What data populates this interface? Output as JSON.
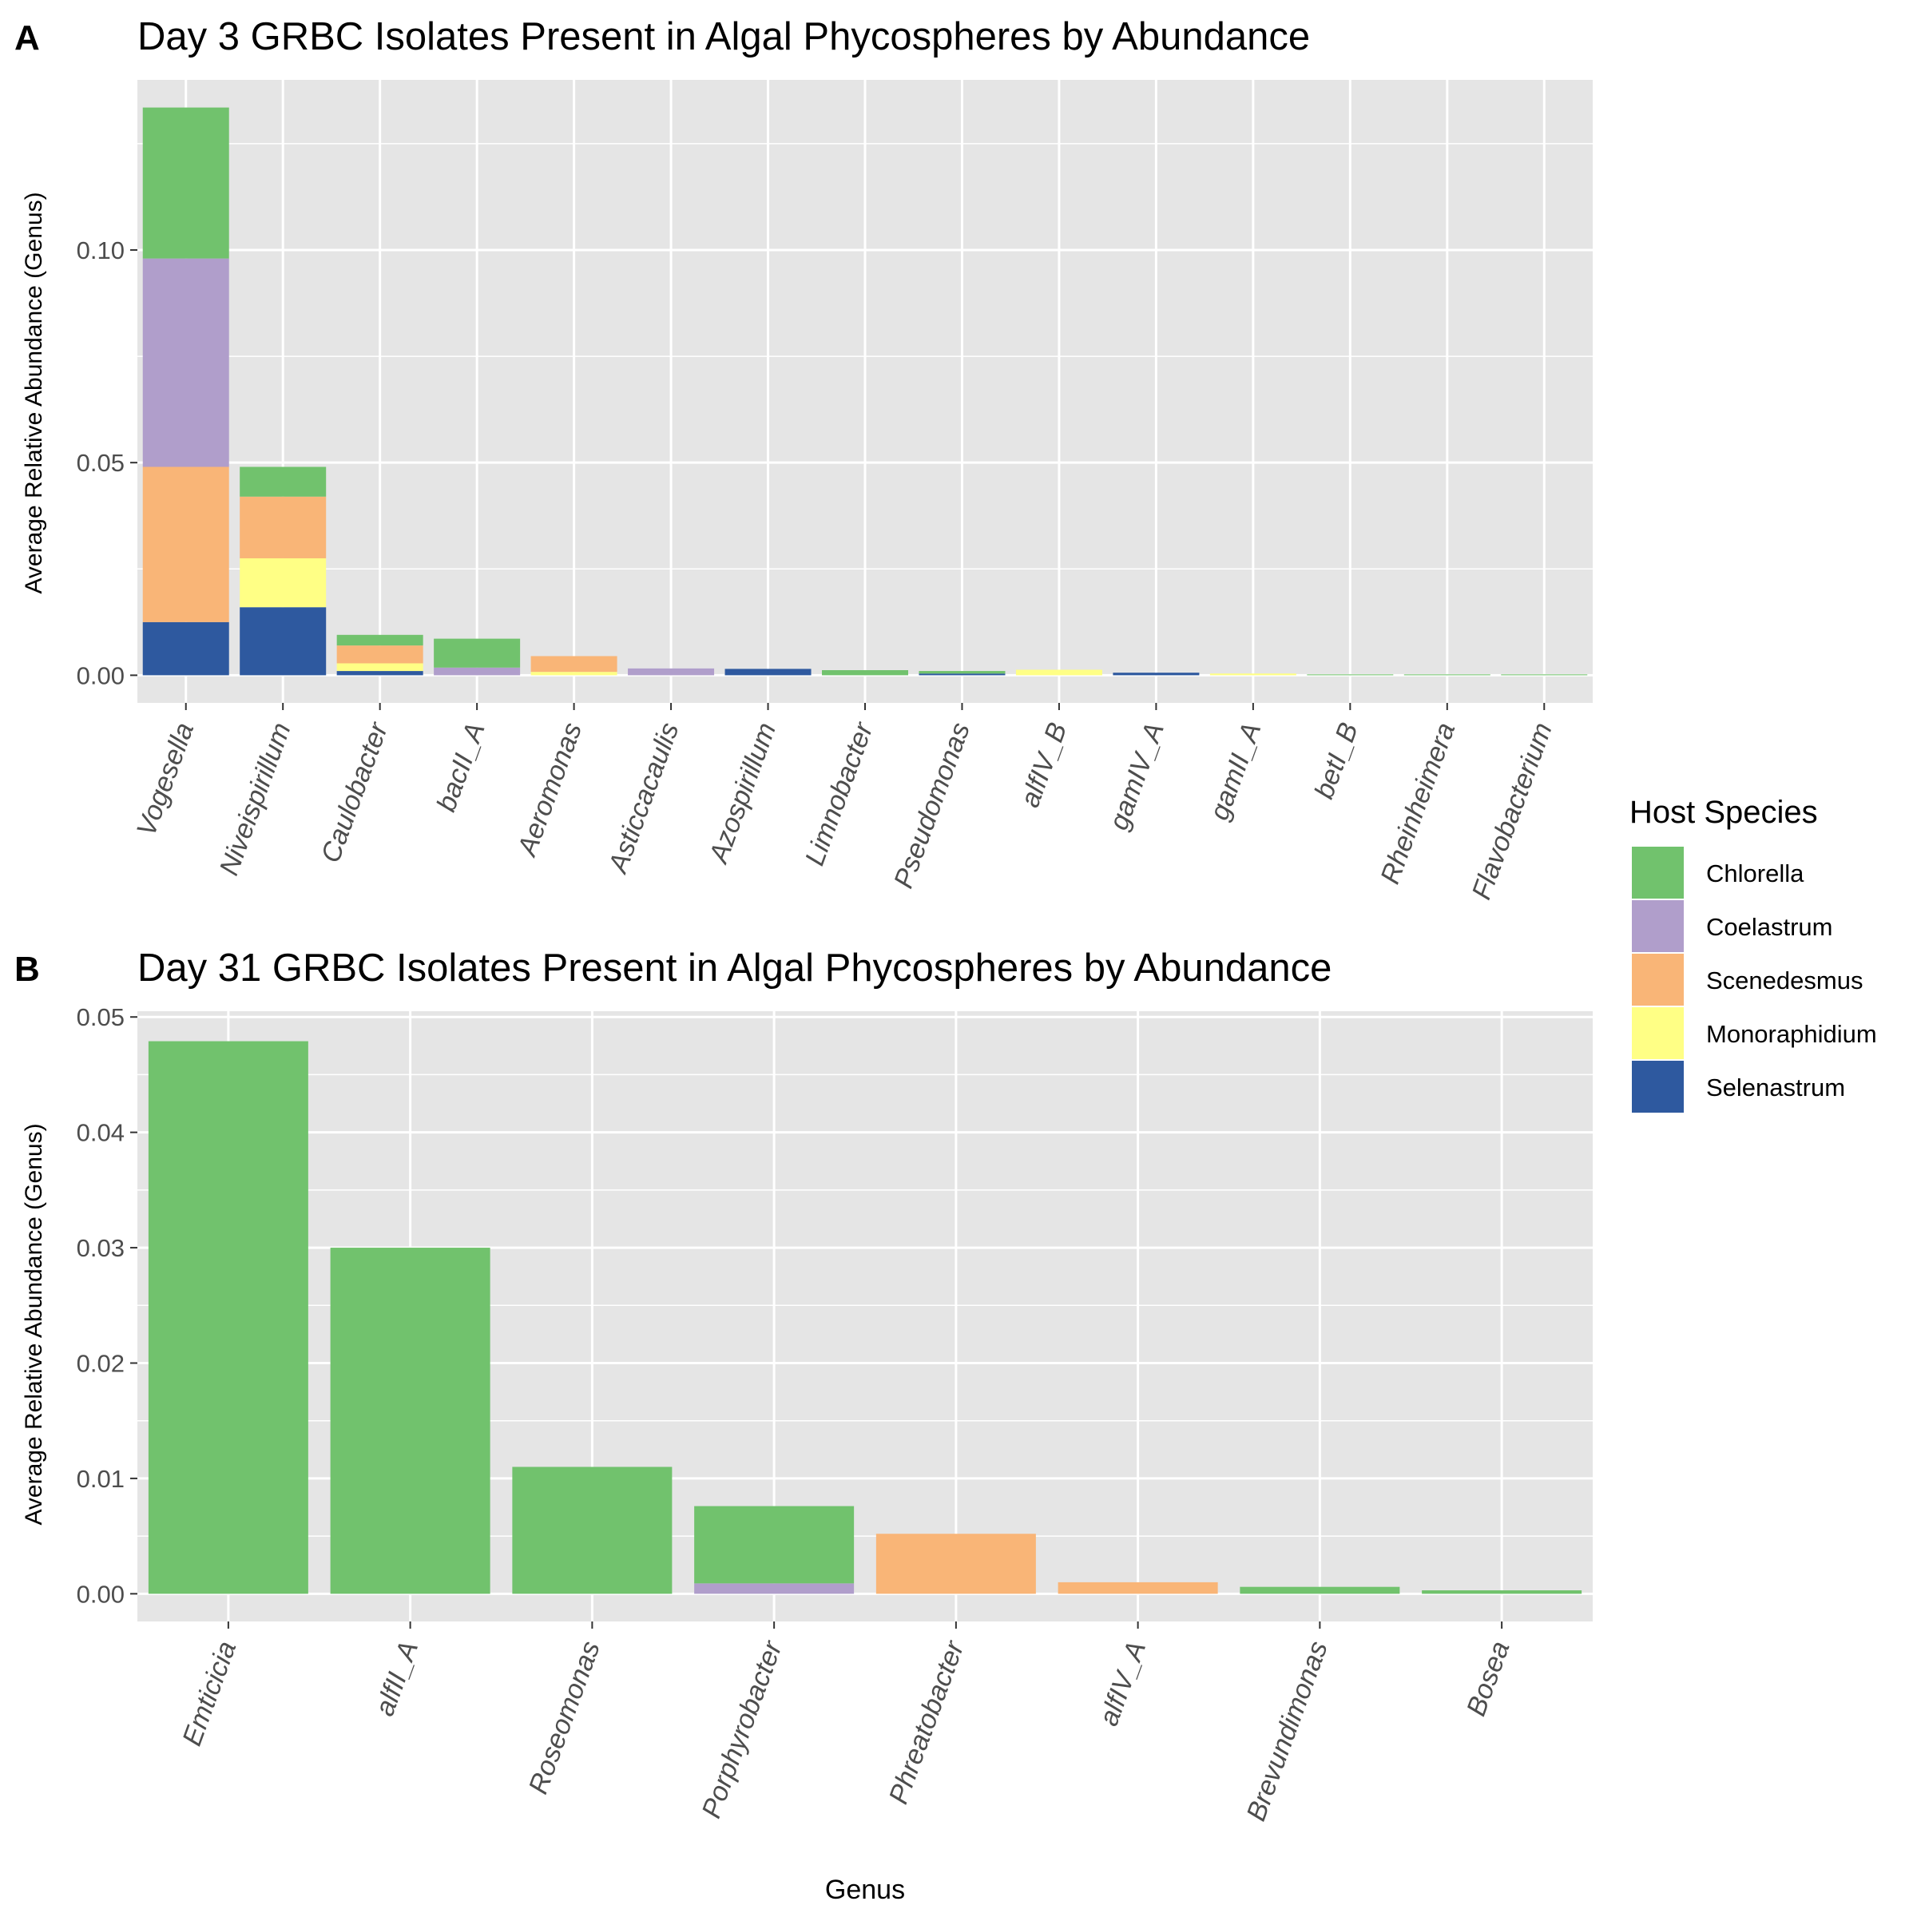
{
  "legend": {
    "title": "Host Species",
    "items": [
      {
        "name": "Chlorella",
        "color": "#71C26D"
      },
      {
        "name": "Coelastrum",
        "color": "#B09ECB"
      },
      {
        "name": "Scenedesmus",
        "color": "#F9B577"
      },
      {
        "name": "Monoraphidium",
        "color": "#FFFF85"
      },
      {
        "name": "Selenastrum",
        "color": "#2E599F"
      }
    ]
  },
  "chart_data": [
    {
      "panel_label": "A",
      "type": "bar",
      "stacked": true,
      "title": "Day 3 GRBC Isolates Present in Algal Phycospheres by Abundance",
      "xlabel": "",
      "ylabel": "Average Relative Abundance (Genus)",
      "ylim": [
        -0.0065,
        0.14
      ],
      "yticks": [
        0.0,
        0.05,
        0.1
      ],
      "ytick_labels": [
        "0.00",
        "0.05",
        "0.10"
      ],
      "grid": true,
      "categories": [
        "Vogesella",
        "Niveispirillum",
        "Caulobacter",
        "bacII_A",
        "Aeromonas",
        "Asticcacaulis",
        "Azospirillum",
        "Limnobacter",
        "Pseudomonas",
        "alfIV_B",
        "gamIV_A",
        "gamII_A",
        "betI_B",
        "Rheinheimera",
        "Flavobacterium"
      ],
      "series": [
        {
          "name": "Selenastrum",
          "values": [
            0.0125,
            0.016,
            0.001,
            0,
            0,
            0,
            0.0015,
            0,
            0.0004,
            0,
            0.0006,
            0,
            0,
            0,
            0
          ]
        },
        {
          "name": "Monoraphidium",
          "values": [
            0,
            0.0115,
            0.0018,
            0,
            0.0008,
            0,
            0,
            0,
            0,
            0.0013,
            0,
            0.0004,
            0,
            0,
            0
          ]
        },
        {
          "name": "Scenedesmus",
          "values": [
            0.0365,
            0.0145,
            0.0042,
            0,
            0.0037,
            0,
            0,
            0,
            0,
            0,
            0,
            0,
            0,
            0,
            0
          ]
        },
        {
          "name": "Coelastrum",
          "values": [
            0.049,
            0,
            0,
            0.0018,
            0,
            0.0016,
            0,
            0,
            0,
            0,
            0,
            0,
            0,
            0,
            0
          ]
        },
        {
          "name": "Chlorella",
          "values": [
            0.0355,
            0.007,
            0.0025,
            0.0068,
            0,
            0,
            0,
            0.0012,
            0.0006,
            0,
            0,
            0,
            0.0002,
            0.0002,
            0.0002
          ]
        }
      ]
    },
    {
      "panel_label": "B",
      "type": "bar",
      "stacked": true,
      "title": "Day 31 GRBC Isolates Present in Algal Phycospheres by Abundance",
      "xlabel": "Genus",
      "ylabel": "Average Relative Abundance (Genus)",
      "ylim": [
        -0.0024,
        0.0505
      ],
      "yticks": [
        0.0,
        0.01,
        0.02,
        0.03,
        0.04,
        0.05
      ],
      "ytick_labels": [
        "0.00",
        "0.01",
        "0.02",
        "0.03",
        "0.04",
        "0.05"
      ],
      "grid": true,
      "categories": [
        "Emticicia",
        "alfII_A",
        "Roseomonas",
        "Porphyrobacter",
        "Phreatobacter",
        "alfIV_A",
        "Brevundimonas",
        "Bosea"
      ],
      "series": [
        {
          "name": "Selenastrum",
          "values": [
            0,
            0,
            0,
            0,
            0,
            0,
            0,
            0
          ]
        },
        {
          "name": "Monoraphidium",
          "values": [
            0,
            0,
            0,
            0,
            0,
            0,
            0,
            0
          ]
        },
        {
          "name": "Scenedesmus",
          "values": [
            0,
            0,
            0,
            0,
            0.0052,
            0.001,
            0,
            0
          ]
        },
        {
          "name": "Coelastrum",
          "values": [
            0,
            0,
            0,
            0.0009,
            0,
            0,
            0,
            0
          ]
        },
        {
          "name": "Chlorella",
          "values": [
            0.0479,
            0.03,
            0.011,
            0.0067,
            0,
            0,
            0.0006,
            0.0003
          ]
        }
      ]
    }
  ]
}
